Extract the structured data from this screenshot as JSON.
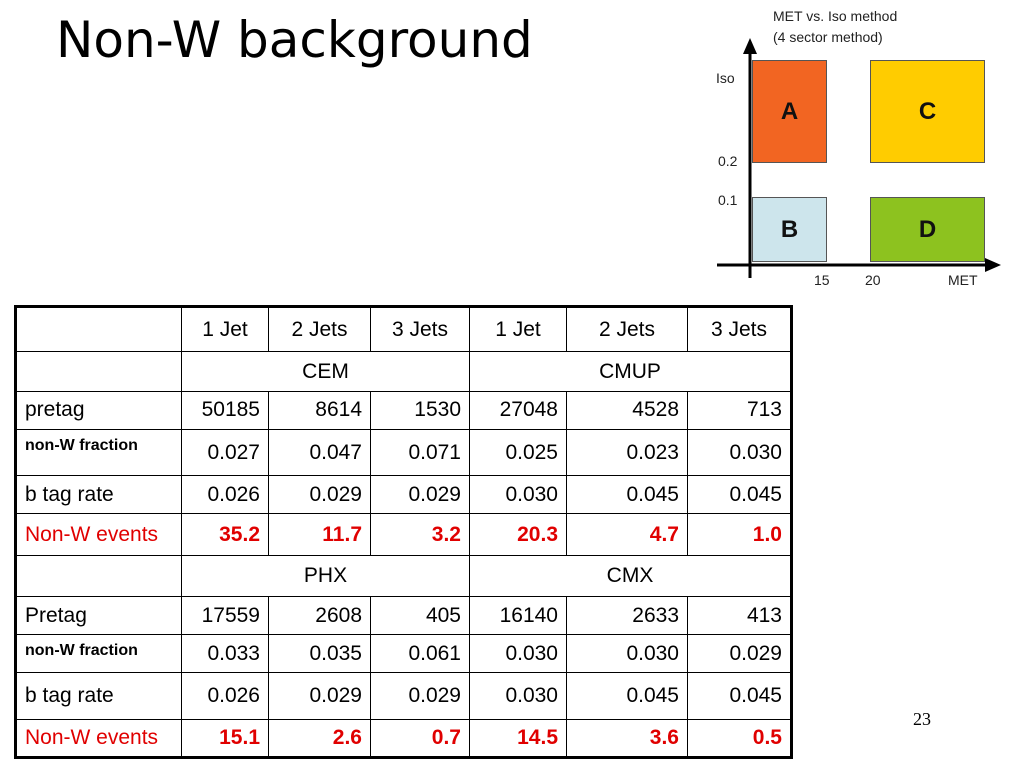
{
  "slide": {
    "title": "Non-W background",
    "page_number": "23"
  },
  "diagram": {
    "title_line1": "MET vs. Iso method",
    "title_line2": "(4 sector method)",
    "y_axis_label": "Iso",
    "x_axis_label": "MET",
    "y_tick_1": "0.2",
    "y_tick_2": "0.1",
    "x_tick_1": "15",
    "x_tick_2": "20",
    "regions": [
      {
        "label": "A",
        "color": "#f26522"
      },
      {
        "label": "B",
        "color": "#cde5ec"
      },
      {
        "label": "C",
        "color": "#ffcc00"
      },
      {
        "label": "D",
        "color": "#8dc21f"
      }
    ]
  },
  "table": {
    "columns": [
      "1 Jet",
      "2 Jets",
      "3 Jets",
      "1 Jet",
      "2 Jets",
      "3 Jets"
    ],
    "highlight_color": "#e00000",
    "sections": [
      {
        "groups": [
          "CEM",
          "CMUP"
        ],
        "rows": [
          {
            "label": "pretag",
            "values": [
              "50185",
              "8614",
              "1530",
              "27048",
              "4528",
              "713"
            ]
          },
          {
            "label": "non-W fraction",
            "values": [
              "0.027",
              "0.047",
              "0.071",
              "0.025",
              "0.023",
              "0.030"
            ]
          },
          {
            "label": "b tag rate",
            "values": [
              "0.026",
              "0.029",
              "0.029",
              "0.030",
              "0.045",
              "0.045"
            ]
          },
          {
            "label": "Non-W events",
            "values": [
              "35.2",
              "11.7",
              "3.2",
              "20.3",
              "4.7",
              "1.0"
            ]
          }
        ]
      },
      {
        "groups": [
          "PHX",
          "CMX"
        ],
        "rows": [
          {
            "label": "Pretag",
            "values": [
              "17559",
              "2608",
              "405",
              "16140",
              "2633",
              "413"
            ]
          },
          {
            "label": "non-W fraction",
            "values": [
              "0.033",
              "0.035",
              "0.061",
              "0.030",
              "0.030",
              "0.029"
            ]
          },
          {
            "label": "b tag rate",
            "values": [
              "0.026",
              "0.029",
              "0.029",
              "0.030",
              "0.045",
              "0.045"
            ]
          },
          {
            "label": "Non-W events",
            "values": [
              "15.1",
              "2.6",
              "0.7",
              "14.5",
              "3.6",
              "0.5"
            ]
          }
        ]
      }
    ]
  }
}
